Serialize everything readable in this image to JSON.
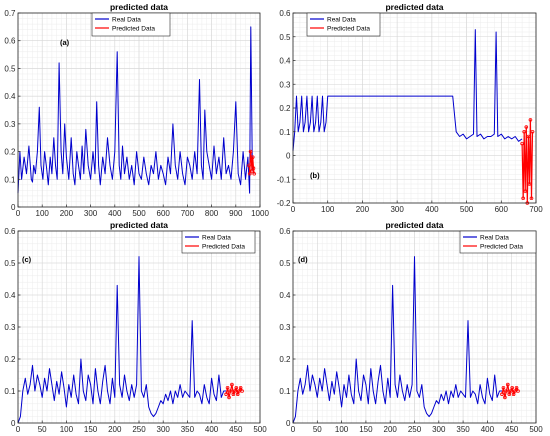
{
  "chart_data": [
    {
      "type": "line",
      "panel_label": "(a)",
      "title": "predicted data",
      "xlim": [
        0,
        1000
      ],
      "ylim": [
        0,
        0.7
      ],
      "xticks": [
        0,
        100,
        200,
        300,
        400,
        500,
        600,
        700,
        800,
        900,
        1000
      ],
      "yticks": [
        0,
        0.1,
        0.2,
        0.3,
        0.4,
        0.5,
        0.6,
        0.7
      ],
      "grid": true,
      "legend_position": "top-center",
      "series": [
        {
          "name": "Real Data",
          "color": "#0000cd",
          "x": [
            0,
            8,
            15,
            25,
            35,
            45,
            55,
            60,
            65,
            72,
            80,
            88,
            95,
            103,
            110,
            118,
            125,
            133,
            140,
            148,
            155,
            162,
            170,
            178,
            185,
            193,
            200,
            210,
            220,
            228,
            235,
            243,
            250,
            258,
            265,
            272,
            280,
            290,
            300,
            310,
            318,
            325,
            333,
            340,
            350,
            360,
            370,
            380,
            390,
            400,
            410,
            418,
            425,
            432,
            440,
            450,
            460,
            470,
            480,
            490,
            500,
            510,
            520,
            530,
            540,
            550,
            560,
            570,
            580,
            590,
            600,
            610,
            620,
            630,
            640,
            650,
            660,
            670,
            680,
            690,
            700,
            710,
            720,
            730,
            740,
            750,
            758,
            765,
            772,
            780,
            790,
            800,
            810,
            820,
            830,
            840,
            850,
            860,
            870,
            880,
            890,
            900,
            910,
            920,
            930,
            940,
            950,
            957,
            962,
            968,
            975
          ],
          "y": [
            0.05,
            0.2,
            0.1,
            0.18,
            0.12,
            0.22,
            0.1,
            0.09,
            0.15,
            0.12,
            0.2,
            0.36,
            0.15,
            0.1,
            0.2,
            0.14,
            0.08,
            0.18,
            0.12,
            0.25,
            0.15,
            0.1,
            0.52,
            0.2,
            0.12,
            0.3,
            0.18,
            0.1,
            0.25,
            0.12,
            0.08,
            0.2,
            0.15,
            0.1,
            0.22,
            0.12,
            0.28,
            0.15,
            0.1,
            0.2,
            0.12,
            0.38,
            0.15,
            0.08,
            0.18,
            0.12,
            0.25,
            0.15,
            0.1,
            0.2,
            0.56,
            0.15,
            0.1,
            0.22,
            0.12,
            0.18,
            0.1,
            0.15,
            0.08,
            0.2,
            0.12,
            0.1,
            0.18,
            0.12,
            0.08,
            0.15,
            0.12,
            0.2,
            0.1,
            0.15,
            0.12,
            0.08,
            0.18,
            0.12,
            0.3,
            0.15,
            0.1,
            0.2,
            0.12,
            0.08,
            0.18,
            0.15,
            0.1,
            0.2,
            0.12,
            0.46,
            0.15,
            0.1,
            0.35,
            0.2,
            0.15,
            0.1,
            0.22,
            0.12,
            0.18,
            0.1,
            0.25,
            0.12,
            0.15,
            0.1,
            0.2,
            0.38,
            0.12,
            0.08,
            0.2,
            0.1,
            0.18,
            0.05,
            0.65,
            0.15,
            0.12
          ]
        },
        {
          "name": "Predicted Data",
          "color": "#ff0000",
          "x": [
            955,
            958,
            961,
            964,
            967,
            970,
            973,
            976
          ],
          "y": [
            0.15,
            0.12,
            0.2,
            0.17,
            0.13,
            0.18,
            0.14,
            0.12
          ]
        }
      ]
    },
    {
      "type": "line",
      "panel_label": "(b)",
      "title": "predicted data",
      "xlim": [
        0,
        700
      ],
      "ylim": [
        -0.2,
        0.6
      ],
      "xticks": [
        0,
        100,
        200,
        300,
        400,
        500,
        600,
        700
      ],
      "yticks": [
        -0.2,
        -0.1,
        0,
        0.1,
        0.2,
        0.3,
        0.4,
        0.5,
        0.6
      ],
      "grid": true,
      "legend_position": "top-left",
      "series": [
        {
          "name": "Real Data",
          "color": "#0000cd",
          "x": [
            0,
            5,
            10,
            15,
            20,
            25,
            30,
            35,
            40,
            45,
            50,
            55,
            60,
            65,
            70,
            75,
            80,
            85,
            90,
            95,
            100,
            120,
            140,
            160,
            180,
            200,
            220,
            240,
            260,
            280,
            300,
            320,
            340,
            360,
            380,
            400,
            420,
            440,
            460,
            470,
            480,
            490,
            500,
            510,
            520,
            525,
            530,
            540,
            550,
            560,
            570,
            580,
            585,
            590,
            600,
            610,
            620,
            630,
            640,
            650,
            660
          ],
          "y": [
            0.02,
            0.1,
            0.25,
            0.1,
            0.14,
            0.25,
            0.1,
            0.14,
            0.25,
            0.1,
            0.14,
            0.25,
            0.1,
            0.14,
            0.25,
            0.1,
            0.14,
            0.25,
            0.1,
            0.14,
            0.25,
            0.25,
            0.25,
            0.25,
            0.25,
            0.25,
            0.25,
            0.25,
            0.25,
            0.25,
            0.25,
            0.25,
            0.25,
            0.25,
            0.25,
            0.25,
            0.25,
            0.25,
            0.25,
            0.1,
            0.08,
            0.09,
            0.07,
            0.08,
            0.09,
            0.53,
            0.08,
            0.09,
            0.07,
            0.08,
            0.08,
            0.09,
            0.52,
            0.08,
            0.09,
            0.07,
            0.08,
            0.07,
            0.08,
            0.06,
            0.07
          ]
        },
        {
          "name": "Predicted Data",
          "color": "#ff0000",
          "x": [
            660,
            663,
            666,
            669,
            672,
            675,
            678,
            681,
            684,
            687,
            690
          ],
          "y": [
            0.05,
            -0.18,
            0.1,
            -0.15,
            0.12,
            -0.2,
            0.08,
            -0.12,
            0.15,
            -0.18,
            0.1
          ]
        }
      ]
    },
    {
      "type": "line",
      "panel_label": "(c)",
      "title": "predicted data",
      "xlim": [
        0,
        500
      ],
      "ylim": [
        0,
        0.6
      ],
      "xticks": [
        0,
        50,
        100,
        150,
        200,
        250,
        300,
        350,
        400,
        450,
        500
      ],
      "yticks": [
        0,
        0.1,
        0.2,
        0.3,
        0.4,
        0.5,
        0.6
      ],
      "grid": true,
      "legend_position": "top-right",
      "series": [
        {
          "name": "Real Data",
          "color": "#0000cd",
          "x": [
            0,
            5,
            10,
            15,
            20,
            25,
            30,
            35,
            40,
            45,
            50,
            55,
            60,
            65,
            70,
            75,
            80,
            85,
            90,
            95,
            100,
            105,
            110,
            115,
            120,
            125,
            130,
            135,
            140,
            145,
            150,
            155,
            160,
            165,
            170,
            175,
            180,
            185,
            190,
            195,
            200,
            205,
            210,
            215,
            220,
            225,
            230,
            235,
            240,
            245,
            250,
            255,
            260,
            265,
            270,
            275,
            280,
            285,
            290,
            295,
            300,
            305,
            310,
            315,
            320,
            325,
            330,
            335,
            340,
            345,
            350,
            355,
            360,
            365,
            370,
            375,
            380,
            385,
            390,
            395,
            400,
            405,
            410,
            415,
            420,
            425,
            430
          ],
          "y": [
            0.0,
            0.02,
            0.1,
            0.14,
            0.09,
            0.12,
            0.18,
            0.1,
            0.15,
            0.12,
            0.08,
            0.14,
            0.1,
            0.17,
            0.12,
            0.07,
            0.13,
            0.09,
            0.16,
            0.11,
            0.05,
            0.12,
            0.08,
            0.15,
            0.09,
            0.06,
            0.2,
            0.1,
            0.07,
            0.15,
            0.12,
            0.06,
            0.17,
            0.1,
            0.06,
            0.13,
            0.18,
            0.1,
            0.06,
            0.14,
            0.08,
            0.43,
            0.12,
            0.08,
            0.15,
            0.1,
            0.07,
            0.12,
            0.08,
            0.12,
            0.52,
            0.1,
            0.08,
            0.12,
            0.05,
            0.03,
            0.02,
            0.03,
            0.05,
            0.07,
            0.06,
            0.09,
            0.07,
            0.1,
            0.06,
            0.1,
            0.08,
            0.12,
            0.08,
            0.1,
            0.09,
            0.08,
            0.32,
            0.08,
            0.1,
            0.09,
            0.06,
            0.12,
            0.08,
            0.06,
            0.14,
            0.09,
            0.07,
            0.15,
            0.08,
            0.1,
            0.1
          ]
        },
        {
          "name": "Predicted Data",
          "color": "#ff0000",
          "x": [
            430,
            433,
            436,
            439,
            442,
            445,
            448,
            451,
            454,
            457,
            460,
            463
          ],
          "y": [
            0.09,
            0.11,
            0.08,
            0.1,
            0.12,
            0.09,
            0.1,
            0.11,
            0.09,
            0.1,
            0.11,
            0.1
          ]
        }
      ]
    },
    {
      "type": "line",
      "panel_label": "(d)",
      "title": "predicted data",
      "xlim": [
        0,
        500
      ],
      "ylim": [
        0,
        0.6
      ],
      "xticks": [
        0,
        50,
        100,
        150,
        200,
        250,
        300,
        350,
        400,
        450,
        500
      ],
      "yticks": [
        0,
        0.1,
        0.2,
        0.3,
        0.4,
        0.5,
        0.6
      ],
      "grid": true,
      "legend_position": "top-right",
      "series": [
        {
          "name": "Real Data",
          "color": "#0000cd",
          "x": [
            0,
            5,
            10,
            15,
            20,
            25,
            30,
            35,
            40,
            45,
            50,
            55,
            60,
            65,
            70,
            75,
            80,
            85,
            90,
            95,
            100,
            105,
            110,
            115,
            120,
            125,
            130,
            135,
            140,
            145,
            150,
            155,
            160,
            165,
            170,
            175,
            180,
            185,
            190,
            195,
            200,
            205,
            210,
            215,
            220,
            225,
            230,
            235,
            240,
            245,
            250,
            255,
            260,
            265,
            270,
            275,
            280,
            285,
            290,
            295,
            300,
            305,
            310,
            315,
            320,
            325,
            330,
            335,
            340,
            345,
            350,
            355,
            360,
            365,
            370,
            375,
            380,
            385,
            390,
            395,
            400,
            405,
            410,
            415,
            420,
            425,
            430
          ],
          "y": [
            0.0,
            0.02,
            0.1,
            0.14,
            0.09,
            0.12,
            0.18,
            0.1,
            0.15,
            0.12,
            0.08,
            0.14,
            0.1,
            0.17,
            0.12,
            0.07,
            0.13,
            0.09,
            0.16,
            0.11,
            0.05,
            0.12,
            0.08,
            0.15,
            0.09,
            0.06,
            0.2,
            0.1,
            0.07,
            0.15,
            0.12,
            0.06,
            0.17,
            0.1,
            0.06,
            0.13,
            0.18,
            0.1,
            0.06,
            0.14,
            0.08,
            0.43,
            0.12,
            0.08,
            0.15,
            0.1,
            0.07,
            0.12,
            0.08,
            0.12,
            0.52,
            0.1,
            0.08,
            0.12,
            0.05,
            0.03,
            0.02,
            0.03,
            0.05,
            0.07,
            0.06,
            0.09,
            0.07,
            0.1,
            0.06,
            0.1,
            0.08,
            0.12,
            0.08,
            0.1,
            0.09,
            0.08,
            0.32,
            0.08,
            0.1,
            0.09,
            0.06,
            0.12,
            0.08,
            0.06,
            0.14,
            0.09,
            0.07,
            0.15,
            0.08,
            0.1,
            0.1
          ]
        },
        {
          "name": "Predicted Data",
          "color": "#ff0000",
          "x": [
            430,
            433,
            436,
            439,
            442,
            445,
            448,
            451,
            454,
            457,
            460,
            463
          ],
          "y": [
            0.09,
            0.11,
            0.08,
            0.1,
            0.12,
            0.09,
            0.1,
            0.11,
            0.09,
            0.1,
            0.11,
            0.1
          ]
        }
      ]
    }
  ]
}
